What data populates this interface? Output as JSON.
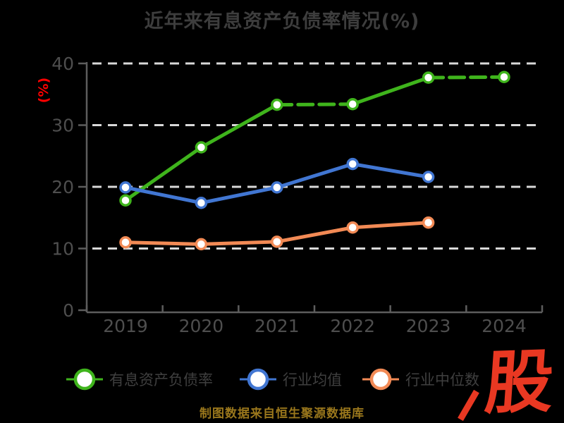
{
  "header": {
    "title": "近年来有息资产负债率情况(%)"
  },
  "footer": {
    "source_note": "制图数据来自恒生聚源数据库",
    "watermark": "股"
  },
  "colors": {
    "background": "#000000",
    "title": "#3d3d3d",
    "tick_labels": "#4e4e4e",
    "axis": "#5d5d5d",
    "gridline": "#d9d9d9",
    "y_axis_label": "#ff0000",
    "legend_text": "#3f3f3f",
    "source_note": "#9a771c",
    "watermark": "#e93822",
    "marker_fill": "#ffffff"
  },
  "chart_data": {
    "type": "line",
    "title": "近年来有息资产负债率情况(%)",
    "xlabel": "",
    "ylabel": "(%)",
    "categories": [
      "2019",
      "2020",
      "2021",
      "2022",
      "2023",
      "2024"
    ],
    "y_ticks": [
      0,
      10,
      20,
      30,
      40
    ],
    "ylim": [
      0,
      40
    ],
    "grid": "horizontal-dashed-white",
    "legend_position": "bottom",
    "marker": "white-filled-circle",
    "series": [
      {
        "name": "有息资产负债率",
        "color": "#3fb41c",
        "values": [
          17.8,
          26.4,
          33.3,
          33.4,
          37.7,
          37.8
        ],
        "line_style": "solid-with-dashed-segments",
        "dashed_segments": [
          [
            2,
            3
          ],
          [
            4,
            5
          ]
        ]
      },
      {
        "name": "行业均值",
        "color": "#4176d2",
        "values": [
          19.9,
          17.4,
          19.9,
          23.7,
          21.6
        ],
        "line_style": "solid",
        "dashed_segments": []
      },
      {
        "name": "行业中位数",
        "color": "#f28a55",
        "values": [
          11.0,
          10.7,
          11.1,
          13.4,
          14.2
        ],
        "line_style": "solid",
        "dashed_segments": []
      }
    ]
  }
}
